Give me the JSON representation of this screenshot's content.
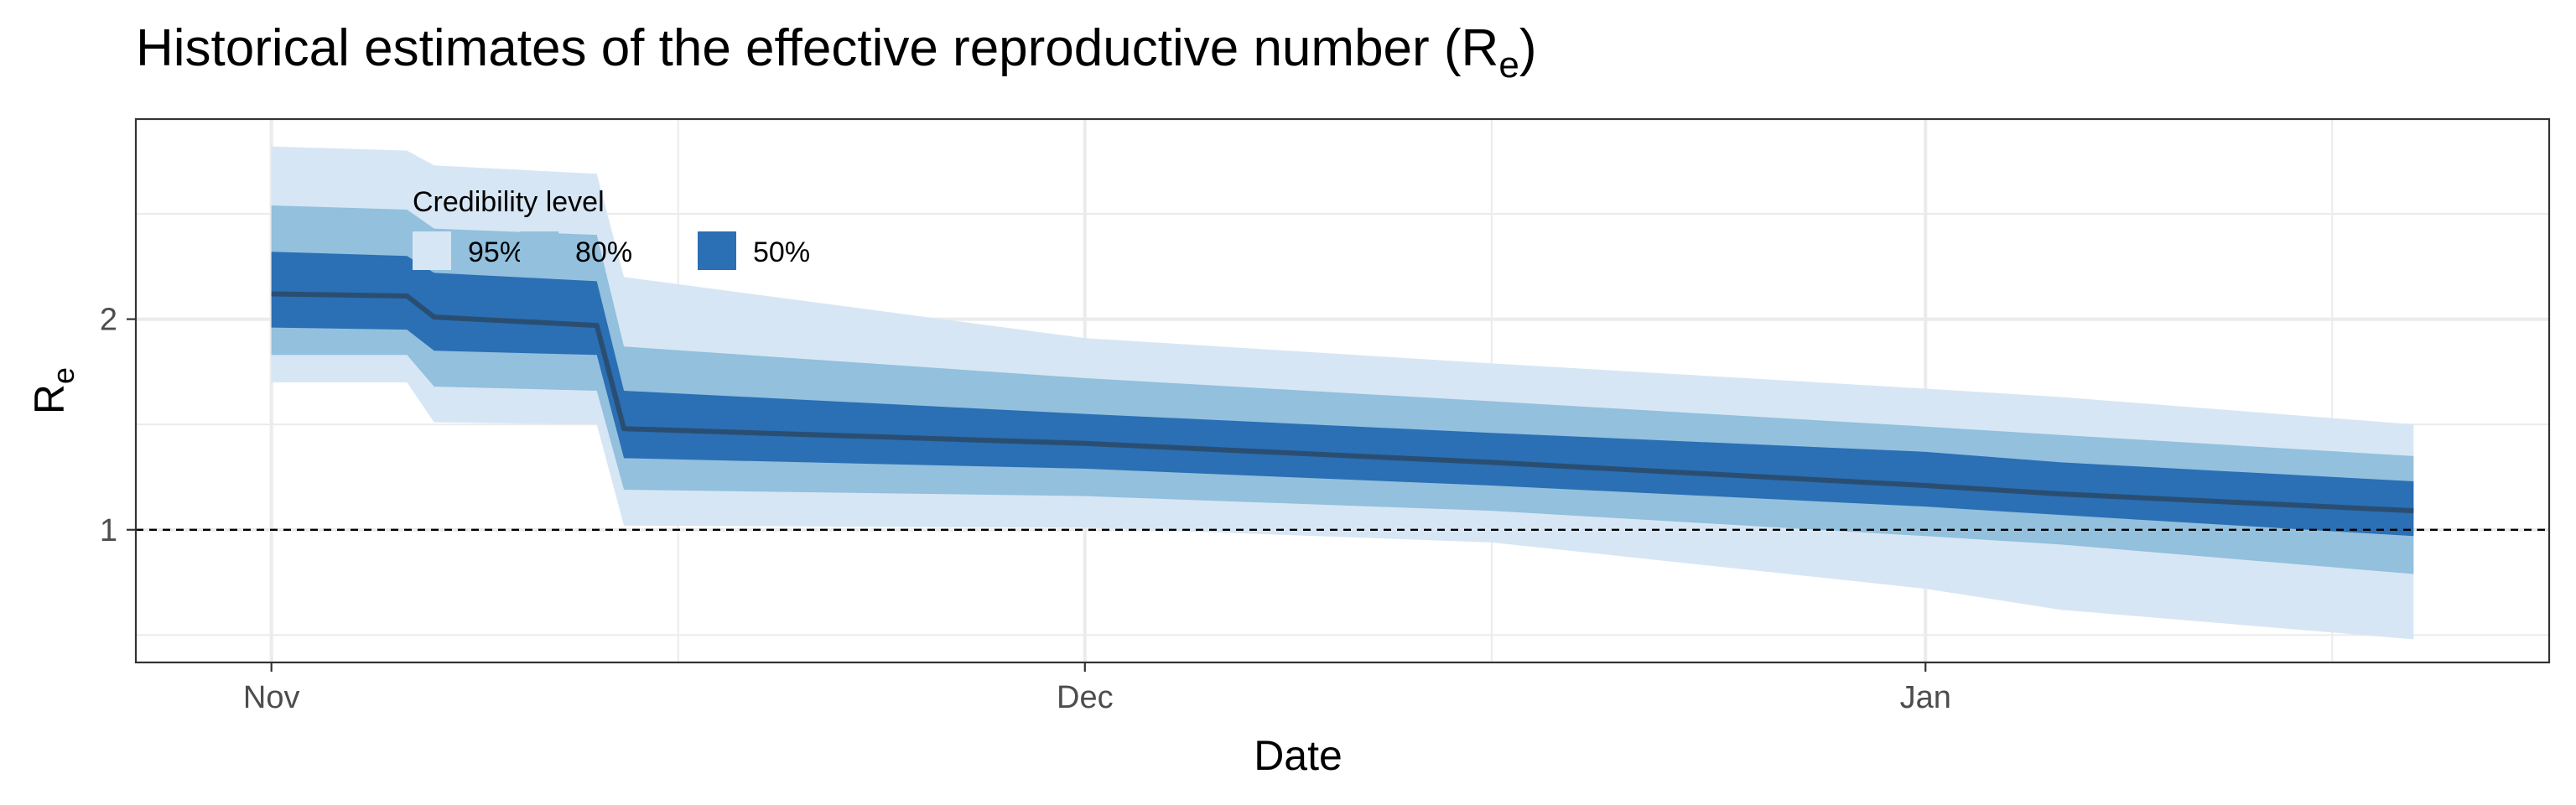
{
  "title": {
    "main": "Historical estimates of the effective reproductive number (R",
    "sub": "e",
    "close": ")"
  },
  "colors": {
    "ci95": "#d6e6f4",
    "ci80": "#92c0dd",
    "ci50": "#2b6fb4",
    "median": "#2a4e72",
    "grid": "#ebebeb",
    "border": "#333333"
  },
  "chart_data": {
    "type": "area",
    "title": "Historical estimates of the effective reproductive number (Re)",
    "xlabel": "Date",
    "ylabel_main": "R",
    "ylabel_sub": "e",
    "xlim": [
      "2020-10-27",
      "2021-01-24"
    ],
    "ylim": [
      0.37,
      2.95
    ],
    "x_ticks": [
      {
        "date": "2020-11-01",
        "label": "Nov"
      },
      {
        "date": "2020-12-01",
        "label": "Dec"
      },
      {
        "date": "2021-01-01",
        "label": "Jan"
      }
    ],
    "x_minor": [
      "2020-11-16",
      "2020-12-16",
      "2021-01-16"
    ],
    "y_ticks": [
      1,
      2
    ],
    "y_minor": [
      0.5,
      1.5,
      2.5
    ],
    "reference_line": 1,
    "legend": {
      "title": "Credibility level",
      "placement": "top-left inside",
      "items": [
        {
          "label": "95%",
          "color": "#d6e6f4"
        },
        {
          "label": "80%",
          "color": "#92c0dd"
        },
        {
          "label": "50%",
          "color": "#2b6fb4"
        }
      ]
    },
    "x": [
      "2020-11-01",
      "2020-11-06",
      "2020-11-07",
      "2020-11-13",
      "2020-11-14",
      "2020-12-01",
      "2020-12-16",
      "2021-01-01",
      "2021-01-06",
      "2021-01-19"
    ],
    "median": [
      2.12,
      2.11,
      2.01,
      1.97,
      1.48,
      1.41,
      1.32,
      1.21,
      1.17,
      1.09
    ],
    "ci50": {
      "lower": [
        1.96,
        1.95,
        1.85,
        1.83,
        1.34,
        1.29,
        1.21,
        1.11,
        1.07,
        0.97
      ],
      "upper": [
        2.32,
        2.3,
        2.22,
        2.18,
        1.66,
        1.55,
        1.46,
        1.37,
        1.32,
        1.23
      ]
    },
    "ci80": {
      "lower": [
        1.83,
        1.83,
        1.68,
        1.66,
        1.19,
        1.16,
        1.09,
        0.97,
        0.93,
        0.79
      ],
      "upper": [
        2.54,
        2.52,
        2.43,
        2.4,
        1.87,
        1.72,
        1.61,
        1.49,
        1.45,
        1.35
      ]
    },
    "ci95": {
      "lower": [
        1.7,
        1.7,
        1.51,
        1.5,
        1.02,
        1.01,
        0.94,
        0.72,
        0.62,
        0.48
      ],
      "upper": [
        2.82,
        2.8,
        2.73,
        2.69,
        2.2,
        1.91,
        1.79,
        1.67,
        1.63,
        1.5
      ]
    }
  }
}
